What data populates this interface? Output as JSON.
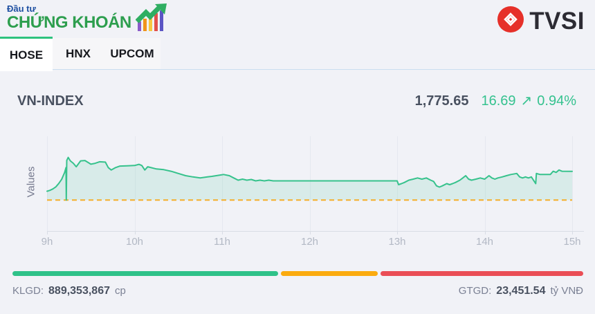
{
  "brand": {
    "logo_line1": "Đầu tư",
    "logo_line2": "CHỨNG KHOÁN",
    "logo_line1_color": "#1d4fa1",
    "logo_line2_color": "#2d9e4e",
    "tvsi_text": "TVSI",
    "tvsi_red": "#e63029"
  },
  "tabs": [
    {
      "label": "HOSE",
      "active": true
    },
    {
      "label": "HNX",
      "active": false
    },
    {
      "label": "UPCOM",
      "active": false
    }
  ],
  "index_header": {
    "name": "VN-INDEX",
    "value": "1,775.65",
    "change": "16.69",
    "arrow": "↗",
    "change_pct": "0.94%",
    "up_color": "#35c28f"
  },
  "chart_data": {
    "type": "area",
    "title": "VN-INDEX intraday",
    "ylabel": "Values",
    "x_unit": "minutes since 09:00",
    "xlim": [
      0,
      360
    ],
    "ylim": [
      1741,
      1796
    ],
    "grid": true,
    "x_ticks": [
      {
        "t": 0,
        "label": "9h"
      },
      {
        "t": 60,
        "label": "10h"
      },
      {
        "t": 120,
        "label": "11h"
      },
      {
        "t": 180,
        "label": "12h"
      },
      {
        "t": 240,
        "label": "13h"
      },
      {
        "t": 300,
        "label": "14h"
      },
      {
        "t": 360,
        "label": "15h"
      }
    ],
    "reference_value": 1758.96,
    "reference_style": "dashed",
    "reference_color": "#f5ae2a",
    "line_color": "#36c28c",
    "fill_color": "rgba(54,194,140,0.13)",
    "points": [
      [
        0,
        1764.1
      ],
      [
        2,
        1764.6
      ],
      [
        4,
        1765.4
      ],
      [
        6,
        1766.6
      ],
      [
        8,
        1768.6
      ],
      [
        10,
        1771.0
      ],
      [
        12,
        1774.9
      ],
      [
        13,
        1777.8
      ],
      [
        13.2,
        1758.96
      ],
      [
        13.5,
        1782.0
      ],
      [
        14.5,
        1783.7
      ],
      [
        16,
        1781.7
      ],
      [
        18,
        1780.3
      ],
      [
        20,
        1778.3
      ],
      [
        23,
        1781.7
      ],
      [
        26,
        1781.9
      ],
      [
        30,
        1779.8
      ],
      [
        33,
        1780.3
      ],
      [
        36,
        1781.2
      ],
      [
        40,
        1781.0
      ],
      [
        42,
        1777.8
      ],
      [
        44,
        1776.4
      ],
      [
        47,
        1777.8
      ],
      [
        50,
        1778.7
      ],
      [
        55,
        1778.8
      ],
      [
        60,
        1779.0
      ],
      [
        63,
        1779.7
      ],
      [
        65,
        1779.0
      ],
      [
        67,
        1776.4
      ],
      [
        69,
        1778.3
      ],
      [
        75,
        1777.0
      ],
      [
        80,
        1776.6
      ],
      [
        85,
        1775.7
      ],
      [
        90,
        1774.4
      ],
      [
        95,
        1773.1
      ],
      [
        100,
        1772.4
      ],
      [
        105,
        1771.8
      ],
      [
        110,
        1772.4
      ],
      [
        113,
        1772.7
      ],
      [
        116,
        1773.1
      ],
      [
        119,
        1773.5
      ],
      [
        121,
        1773.8
      ],
      [
        125,
        1773.1
      ],
      [
        128,
        1771.8
      ],
      [
        131,
        1770.5
      ],
      [
        134,
        1771.1
      ],
      [
        137,
        1770.5
      ],
      [
        140,
        1770.9
      ],
      [
        143,
        1770.1
      ],
      [
        146,
        1770.5
      ],
      [
        149,
        1770.1
      ],
      [
        152,
        1770.5
      ],
      [
        155,
        1770.1
      ],
      [
        240,
        1770.1
      ],
      [
        241,
        1767.9
      ],
      [
        243,
        1768.5
      ],
      [
        245,
        1769.2
      ],
      [
        248,
        1770.5
      ],
      [
        251,
        1771.1
      ],
      [
        254,
        1771.8
      ],
      [
        257,
        1771.1
      ],
      [
        260,
        1771.8
      ],
      [
        263,
        1770.5
      ],
      [
        265,
        1769.8
      ],
      [
        267,
        1767.2
      ],
      [
        269,
        1766.5
      ],
      [
        271,
        1767.2
      ],
      [
        274,
        1768.5
      ],
      [
        276,
        1767.9
      ],
      [
        278,
        1768.5
      ],
      [
        280,
        1769.2
      ],
      [
        283,
        1770.5
      ],
      [
        285,
        1771.8
      ],
      [
        287,
        1773.1
      ],
      [
        289,
        1771.1
      ],
      [
        291,
        1770.5
      ],
      [
        294,
        1771.1
      ],
      [
        297,
        1771.8
      ],
      [
        300,
        1771.1
      ],
      [
        303,
        1773.1
      ],
      [
        305,
        1771.8
      ],
      [
        307,
        1771.1
      ],
      [
        309,
        1771.8
      ],
      [
        312,
        1772.4
      ],
      [
        315,
        1773.1
      ],
      [
        318,
        1773.8
      ],
      [
        322,
        1774.4
      ],
      [
        324,
        1772.4
      ],
      [
        326,
        1771.8
      ],
      [
        328,
        1772.4
      ],
      [
        330,
        1771.8
      ],
      [
        332,
        1772.4
      ],
      [
        335,
        1768.5
      ],
      [
        335.5,
        1774.4
      ],
      [
        338,
        1773.8
      ],
      [
        345,
        1773.8
      ],
      [
        347,
        1775.7
      ],
      [
        349,
        1775.0
      ],
      [
        351,
        1776.4
      ],
      [
        353,
        1775.7
      ],
      [
        360,
        1775.65
      ]
    ]
  },
  "footer": {
    "progress": [
      {
        "name": "advancers",
        "color": "#2fc289",
        "pct": 46.6
      },
      {
        "name": "unchanged",
        "color": "#fbab0f",
        "pct": 16.9
      },
      {
        "name": "decliners",
        "color": "#ea4e56",
        "pct": 35.6
      }
    ],
    "klgd_label": "KLGD:",
    "klgd_value": "889,353,867",
    "klgd_unit": "cp",
    "gtgd_label": "GTGD:",
    "gtgd_value": "23,451.54",
    "gtgd_unit": "tỷ VNĐ"
  }
}
